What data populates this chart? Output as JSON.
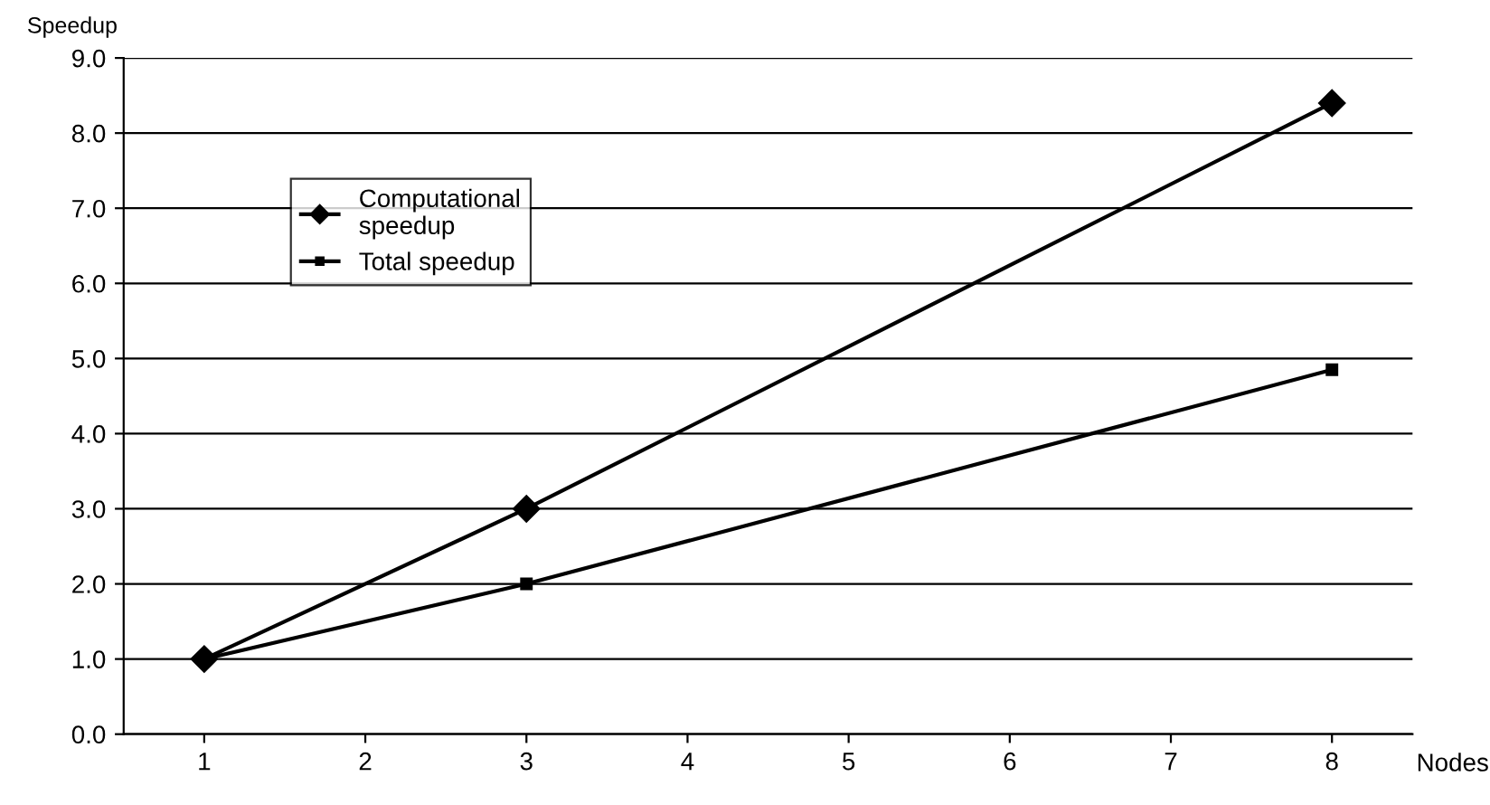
{
  "chart_data": {
    "type": "line",
    "xlabel": "Nodes",
    "ylabel": "Speedup",
    "x": [
      1,
      3,
      8
    ],
    "series": [
      {
        "name": "Computational\nspeedup",
        "color": "#000000",
        "values": [
          1.0,
          3.0,
          8.4
        ],
        "marker": "diamond"
      },
      {
        "name": "Total speedup",
        "color": "#000000",
        "values": [
          1.0,
          2.0,
          4.85
        ],
        "marker": "square"
      }
    ],
    "xlim": [
      0.5,
      8.5
    ],
    "xticks": [
      1,
      2,
      3,
      4,
      5,
      6,
      7,
      8
    ],
    "ylim": [
      0,
      9
    ],
    "yticks": [
      {
        "value": 0,
        "label": "0.0"
      },
      {
        "value": 1,
        "label": "1.0"
      },
      {
        "value": 2,
        "label": "2.0"
      },
      {
        "value": 3,
        "label": "3.0"
      },
      {
        "value": 4,
        "label": "4.0"
      },
      {
        "value": 5,
        "label": "5.0"
      },
      {
        "value": 6,
        "label": "6.0"
      },
      {
        "value": 7,
        "label": "7.0"
      },
      {
        "value": 8,
        "label": "8.0"
      },
      {
        "value": 9,
        "label": "9.0"
      }
    ],
    "grid": "y",
    "legend": "top left",
    "line_style": "solid"
  }
}
